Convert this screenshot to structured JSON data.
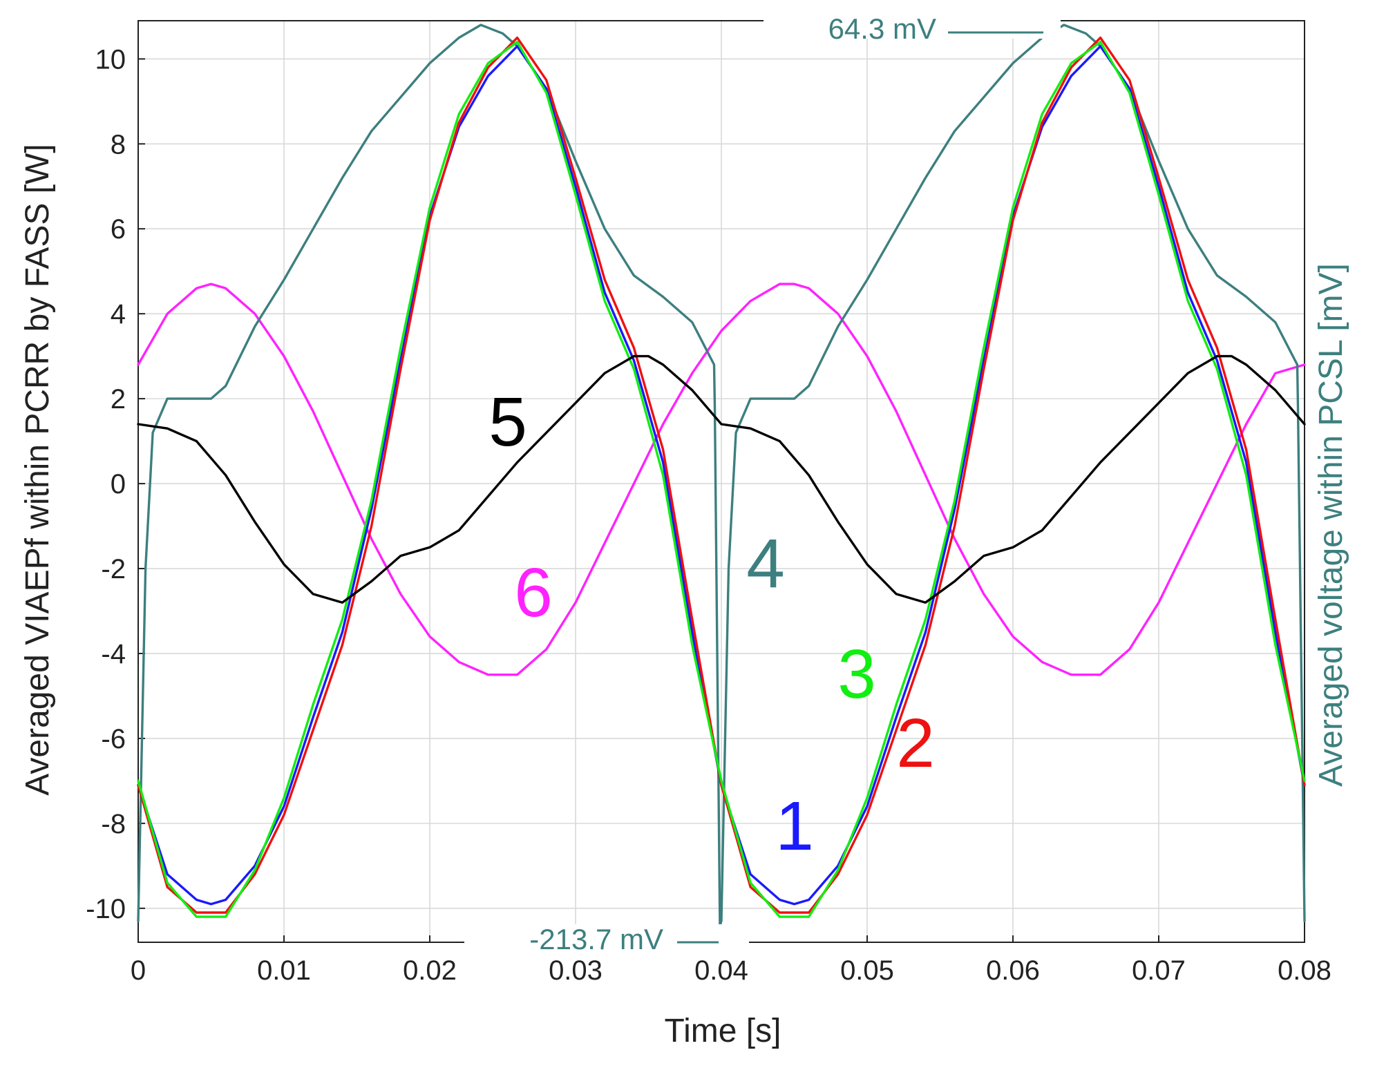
{
  "chart_data": {
    "type": "line",
    "xlabel": "Time [s]",
    "ylabel": "Averaged VIAEPf within PCRR by FASS [W]",
    "ylabel_right": "Averaged voltage within PCSL [mV]",
    "xlim": [
      0,
      0.08
    ],
    "ylim": [
      -10.8,
      10.9
    ],
    "x_ticks": [
      "0",
      "0.01",
      "0.02",
      "0.03",
      "0.04",
      "0.05",
      "0.06",
      "0.07",
      "0.08"
    ],
    "y_ticks": [
      "10",
      "8",
      "6",
      "4",
      "2",
      "0",
      "-2",
      "-4",
      "-6",
      "-8",
      "-10"
    ],
    "grid": true,
    "right_axis_color": "#3d7f7f",
    "annotations": [
      {
        "text": "64.3 mV",
        "x": 0.0125,
        "color": "#3d7f7f"
      },
      {
        "text": "-213.7 mV",
        "x": 0.0345,
        "color": "#3d7f7f"
      }
    ],
    "series": [
      {
        "name": "1",
        "color": "#1a1aff",
        "x": [
          0,
          0.002,
          0.004,
          0.005,
          0.006,
          0.008,
          0.01,
          0.012,
          0.014,
          0.016,
          0.018,
          0.02,
          0.022,
          0.024,
          0.026,
          0.028,
          0.03,
          0.032,
          0.034,
          0.036,
          0.038,
          0.04,
          0.042,
          0.044,
          0.045,
          0.046,
          0.048,
          0.05,
          0.052,
          0.054,
          0.056,
          0.058,
          0.06,
          0.062,
          0.064,
          0.066,
          0.068,
          0.07,
          0.072,
          0.074,
          0.076,
          0.078,
          0.08
        ],
        "y": [
          -7.1,
          -9.2,
          -9.8,
          -9.9,
          -9.8,
          -9.0,
          -7.6,
          -5.5,
          -3.5,
          -0.6,
          2.9,
          6.3,
          8.4,
          9.6,
          10.3,
          9.3,
          7.0,
          4.5,
          2.9,
          0.5,
          -3.5,
          -7.1,
          -9.2,
          -9.8,
          -9.9,
          -9.8,
          -9.0,
          -7.6,
          -5.5,
          -3.5,
          -0.6,
          2.9,
          6.3,
          8.4,
          9.6,
          10.3,
          9.3,
          7.0,
          4.5,
          2.9,
          0.5,
          -3.5,
          -7.1
        ]
      },
      {
        "name": "2",
        "color": "#ee1111",
        "x": [
          0,
          0.002,
          0.004,
          0.006,
          0.008,
          0.01,
          0.012,
          0.014,
          0.016,
          0.018,
          0.02,
          0.022,
          0.024,
          0.026,
          0.028,
          0.03,
          0.032,
          0.034,
          0.036,
          0.038,
          0.04,
          0.042,
          0.044,
          0.046,
          0.048,
          0.05,
          0.052,
          0.054,
          0.056,
          0.058,
          0.06,
          0.062,
          0.064,
          0.066,
          0.068,
          0.07,
          0.072,
          0.074,
          0.076,
          0.078,
          0.08
        ],
        "y": [
          -7.1,
          -9.5,
          -10.1,
          -10.1,
          -9.2,
          -7.8,
          -5.8,
          -3.8,
          -1.0,
          2.7,
          6.2,
          8.5,
          9.8,
          10.5,
          9.5,
          7.2,
          4.8,
          3.2,
          0.8,
          -3.2,
          -7.1,
          -9.5,
          -10.1,
          -10.1,
          -9.2,
          -7.8,
          -5.8,
          -3.8,
          -1.0,
          2.7,
          6.2,
          8.5,
          9.8,
          10.5,
          9.5,
          7.2,
          4.8,
          3.2,
          0.8,
          -3.2,
          -7.1
        ]
      },
      {
        "name": "3",
        "color": "#11ee11",
        "x": [
          0,
          0.002,
          0.004,
          0.006,
          0.008,
          0.01,
          0.012,
          0.014,
          0.016,
          0.018,
          0.02,
          0.022,
          0.024,
          0.026,
          0.028,
          0.03,
          0.032,
          0.034,
          0.036,
          0.038,
          0.04,
          0.042,
          0.044,
          0.046,
          0.048,
          0.05,
          0.052,
          0.054,
          0.056,
          0.058,
          0.06,
          0.062,
          0.064,
          0.066,
          0.068,
          0.07,
          0.072,
          0.074,
          0.076,
          0.078,
          0.08
        ],
        "y": [
          -7.0,
          -9.4,
          -10.2,
          -10.2,
          -9.1,
          -7.4,
          -5.2,
          -3.2,
          -0.4,
          3.2,
          6.5,
          8.7,
          9.9,
          10.4,
          9.2,
          6.8,
          4.3,
          2.7,
          0.2,
          -3.8,
          -7.0,
          -9.4,
          -10.2,
          -10.2,
          -9.1,
          -7.4,
          -5.2,
          -3.2,
          -0.4,
          3.2,
          6.5,
          8.7,
          9.9,
          10.4,
          9.2,
          6.8,
          4.3,
          2.7,
          0.2,
          -3.8,
          -7.0
        ]
      },
      {
        "name": "4",
        "color": "#3d7f7f",
        "x": [
          0,
          0.0005,
          0.001,
          0.002,
          0.003,
          0.004,
          0.005,
          0.006,
          0.008,
          0.01,
          0.012,
          0.014,
          0.016,
          0.018,
          0.02,
          0.022,
          0.0235,
          0.025,
          0.026,
          0.028,
          0.03,
          0.032,
          0.034,
          0.036,
          0.038,
          0.0395,
          0.03955,
          0.0399,
          0.04,
          0.0405,
          0.041,
          0.042,
          0.043,
          0.044,
          0.045,
          0.046,
          0.048,
          0.05,
          0.052,
          0.054,
          0.056,
          0.058,
          0.06,
          0.062,
          0.0635,
          0.065,
          0.066,
          0.068,
          0.07,
          0.072,
          0.074,
          0.076,
          0.078,
          0.0795,
          0.07955,
          0.08
        ],
        "y": [
          -10.3,
          -2.0,
          1.2,
          2.0,
          2.0,
          2.0,
          2.0,
          2.3,
          3.7,
          4.8,
          6.0,
          7.2,
          8.3,
          9.1,
          9.9,
          10.5,
          10.8,
          10.6,
          10.3,
          9.3,
          7.6,
          6.0,
          4.9,
          4.4,
          3.8,
          2.8,
          1.8,
          -10.4,
          -10.3,
          -2.0,
          1.2,
          2.0,
          2.0,
          2.0,
          2.0,
          2.3,
          3.7,
          4.8,
          6.0,
          7.2,
          8.3,
          9.1,
          9.9,
          10.5,
          10.8,
          10.6,
          10.3,
          9.3,
          7.6,
          6.0,
          4.9,
          4.4,
          3.8,
          2.8,
          1.8,
          -10.3
        ]
      },
      {
        "name": "5",
        "color": "#000000",
        "x": [
          0,
          0.002,
          0.004,
          0.006,
          0.008,
          0.01,
          0.012,
          0.014,
          0.016,
          0.018,
          0.02,
          0.022,
          0.024,
          0.026,
          0.028,
          0.03,
          0.032,
          0.034,
          0.035,
          0.036,
          0.038,
          0.04,
          0.042,
          0.044,
          0.046,
          0.048,
          0.05,
          0.052,
          0.054,
          0.056,
          0.058,
          0.06,
          0.062,
          0.064,
          0.066,
          0.068,
          0.07,
          0.072,
          0.074,
          0.075,
          0.076,
          0.078,
          0.08
        ],
        "y": [
          1.4,
          1.3,
          1.0,
          0.2,
          -0.9,
          -1.9,
          -2.6,
          -2.8,
          -2.3,
          -1.7,
          -1.5,
          -1.1,
          -0.3,
          0.5,
          1.2,
          1.9,
          2.6,
          3.0,
          3.0,
          2.8,
          2.2,
          1.4,
          1.3,
          1.0,
          0.2,
          -0.9,
          -1.9,
          -2.6,
          -2.8,
          -2.3,
          -1.7,
          -1.5,
          -1.1,
          -0.3,
          0.5,
          1.2,
          1.9,
          2.6,
          3.0,
          3.0,
          2.8,
          2.2,
          1.4
        ]
      },
      {
        "name": "6",
        "color": "#ff22ff",
        "x": [
          0,
          0.002,
          0.004,
          0.005,
          0.006,
          0.008,
          0.01,
          0.012,
          0.014,
          0.016,
          0.018,
          0.02,
          0.022,
          0.024,
          0.026,
          0.028,
          0.03,
          0.032,
          0.034,
          0.036,
          0.038,
          0.04,
          0.042,
          0.044,
          0.045,
          0.046,
          0.048,
          0.05,
          0.052,
          0.054,
          0.056,
          0.058,
          0.06,
          0.062,
          0.064,
          0.066,
          0.068,
          0.07,
          0.072,
          0.074,
          0.076,
          0.078,
          0.08
        ],
        "y": [
          2.8,
          4.0,
          4.6,
          4.7,
          4.6,
          4.0,
          3.0,
          1.7,
          0.2,
          -1.3,
          -2.6,
          -3.6,
          -4.2,
          -4.5,
          -4.5,
          -3.9,
          -2.8,
          -1.4,
          0.0,
          1.4,
          2.6,
          3.6,
          4.3,
          4.7,
          4.7,
          4.6,
          4.0,
          3.0,
          1.7,
          0.2,
          -1.3,
          -2.6,
          -3.6,
          -4.2,
          -4.5,
          -4.5,
          -3.9,
          -2.8,
          -1.4,
          0.0,
          1.4,
          2.6,
          2.8
        ]
      }
    ]
  }
}
